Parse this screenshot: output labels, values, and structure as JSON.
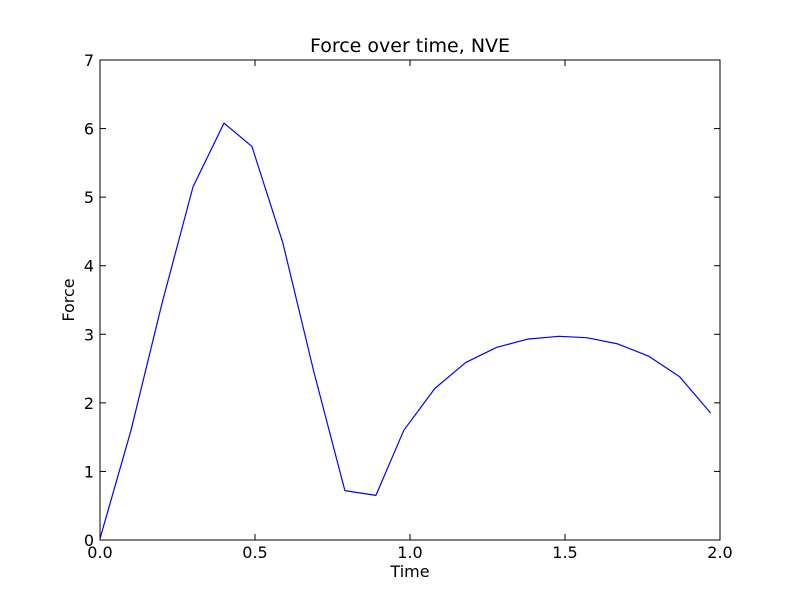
{
  "chart_data": {
    "type": "line",
    "title": "Force over time, NVE",
    "xlabel": "Time",
    "ylabel": "Force",
    "xlim": [
      0.0,
      2.0
    ],
    "ylim": [
      0,
      7
    ],
    "x_ticks": [
      "0.0",
      "0.5",
      "1.0",
      "1.5",
      "2.0"
    ],
    "x_tick_values": [
      0.0,
      0.5,
      1.0,
      1.5,
      2.0
    ],
    "y_ticks": [
      "0",
      "1",
      "2",
      "3",
      "4",
      "5",
      "6",
      "7"
    ],
    "y_tick_values": [
      0,
      1,
      2,
      3,
      4,
      5,
      6,
      7
    ],
    "grid": false,
    "legend": "none",
    "series": [
      {
        "color": "#0000ff",
        "x": [
          0.0,
          0.1,
          0.2,
          0.3,
          0.4,
          0.49,
          0.59,
          0.69,
          0.79,
          0.89,
          0.98,
          1.08,
          1.18,
          1.28,
          1.38,
          1.48,
          1.57,
          1.67,
          1.77,
          1.87,
          1.97
        ],
        "y": [
          0.02,
          1.6,
          3.45,
          5.15,
          6.08,
          5.74,
          4.33,
          2.45,
          0.72,
          0.65,
          1.6,
          2.21,
          2.59,
          2.81,
          2.93,
          2.97,
          2.95,
          2.86,
          2.68,
          2.38,
          1.85
        ]
      }
    ]
  }
}
